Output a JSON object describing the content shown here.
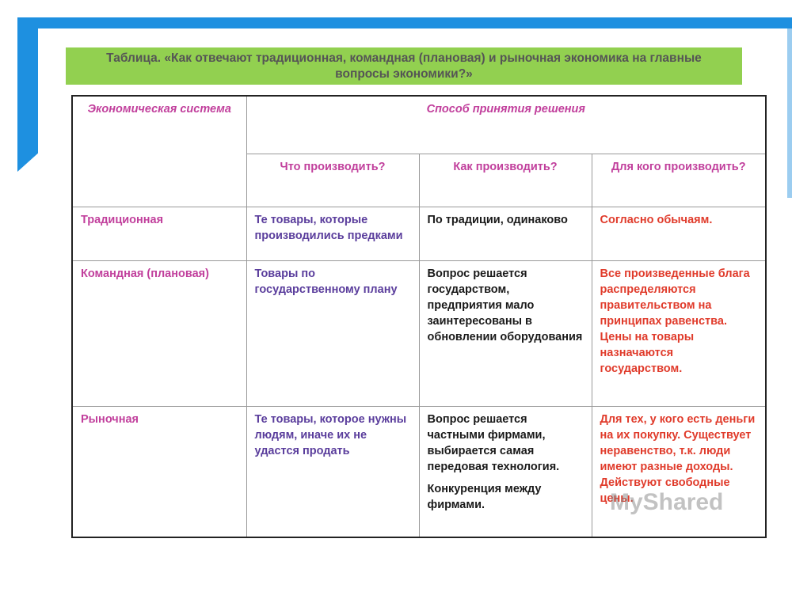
{
  "title": "Таблица. «Как отвечают традиционная, командная (плановая) и рыночная экономика на главные вопросы экономики?»",
  "table": {
    "header": {
      "system": "Экономическая система",
      "method": "Способ принятия решения",
      "questions": [
        "Что производить?",
        "Как производить?",
        "Для кого производить?"
      ]
    },
    "rows": [
      [
        "Традиционная",
        "Те товары, которые производились предками",
        "По традиции, одинаково",
        "Согласно обычаям."
      ],
      [
        "Командная (плановая)",
        "Товары по государственному плану",
        "Вопрос решается государством, предприятия мало заинтересованы в обновлении оборудования",
        "Все произведенные блага распределяются правительством на принципах равенства. Цены на товары назначаются государством."
      ],
      [
        "Рыночная",
        "Те товары, которое нужны людям, иначе их не удастся продать",
        [
          "Вопрос решается частными фирмами, выбирается самая передовая технология.",
          "Конкуренция между фирмами."
        ],
        "Для тех, у кого есть деньги на их покупку. Существует неравенство, т.к. люди имеют разные доходы. Действуют свободные цены."
      ]
    ]
  },
  "watermark": "MyShared"
}
